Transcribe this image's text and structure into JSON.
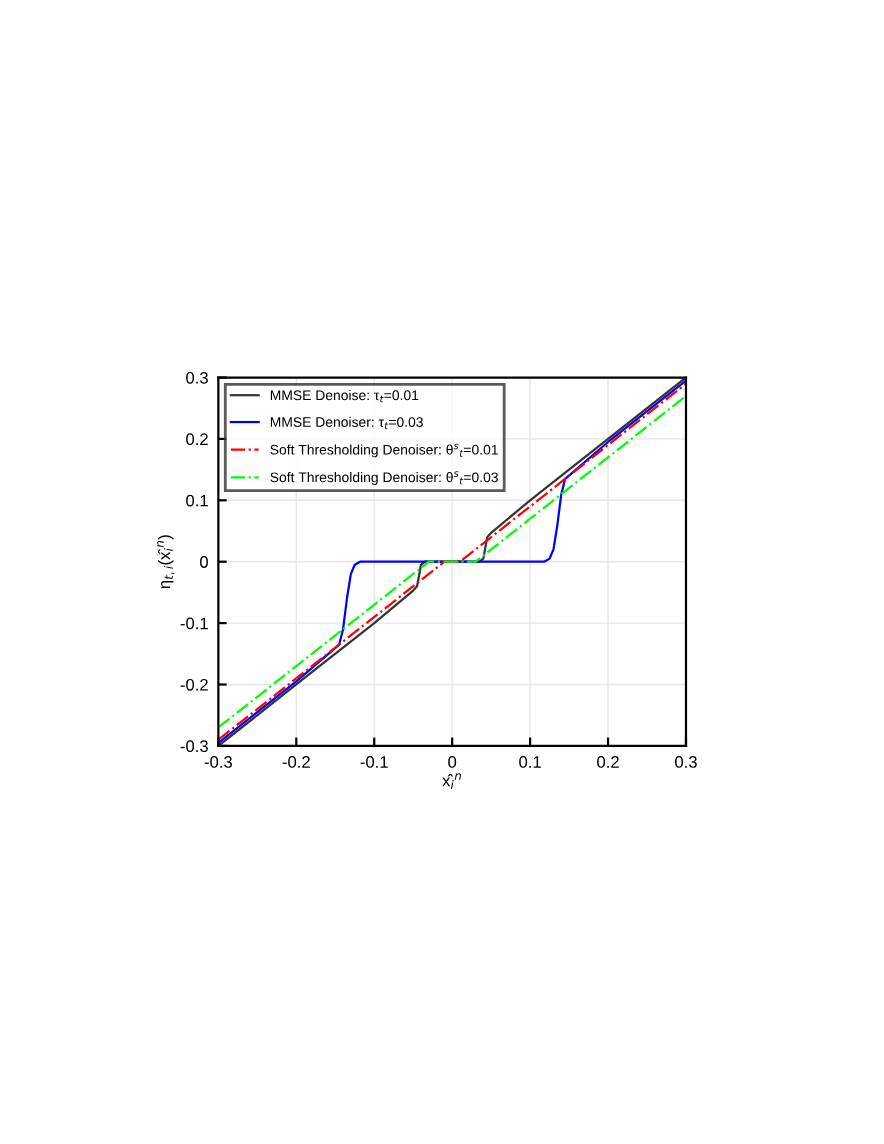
{
  "chart_data": {
    "type": "line",
    "xlabel": "x̂$_{i}$$^{n}$",
    "ylabel": "η$_{t,i}$(x̂$_{i}$$^{n}$)",
    "xlim": [
      -0.3,
      0.3
    ],
    "ylim": [
      -0.3,
      0.3
    ],
    "xticks": [
      -0.3,
      -0.2,
      -0.1,
      0,
      0.1,
      0.2,
      0.3
    ],
    "yticks": [
      -0.3,
      -0.2,
      -0.1,
      0,
      0.1,
      0.2,
      0.3
    ],
    "grid": true,
    "legend": "top left",
    "series": [
      {
        "name": "MMSE Denoise: τ$_{t}$=0.01",
        "color": "#333333",
        "line_style": "solid",
        "x": [
          -0.3,
          -0.2,
          -0.1,
          -0.05,
          -0.045,
          -0.04,
          -0.035,
          0.035,
          0.04,
          0.045,
          0.05,
          0.1,
          0.2,
          0.3
        ],
        "values": [
          -0.3,
          -0.2,
          -0.1,
          -0.047,
          -0.04,
          -0.005,
          0,
          0,
          0.005,
          0.04,
          0.047,
          0.1,
          0.2,
          0.3
        ]
      },
      {
        "name": "MMSE Denoiser: τ$_{t}$=0.03",
        "color": "#0000ff",
        "line_style": "solid",
        "x": [
          -0.3,
          -0.2,
          -0.145,
          -0.14,
          -0.135,
          -0.13,
          -0.125,
          -0.118,
          0.118,
          0.125,
          0.13,
          0.135,
          0.14,
          0.145,
          0.2,
          0.3
        ],
        "values": [
          -0.295,
          -0.195,
          -0.135,
          -0.11,
          -0.06,
          -0.02,
          -0.005,
          0,
          0,
          0.005,
          0.02,
          0.06,
          0.11,
          0.135,
          0.195,
          0.295
        ]
      },
      {
        "name": "Soft Thresholding Denoiser: θ$^{s}$$_{t}$=0.01",
        "color": "#ff0000",
        "line_style": "dashdot",
        "x": [
          -0.3,
          -0.01,
          0.01,
          0.3
        ],
        "values": [
          -0.29,
          0,
          0,
          0.29
        ]
      },
      {
        "name": "Soft Thresholding Denoiser: θ$^{s}$$_{t}$=0.03",
        "color": "#00ff00",
        "line_style": "dashdot",
        "x": [
          -0.3,
          -0.03,
          0.03,
          0.3
        ],
        "values": [
          -0.27,
          0,
          0,
          0.27
        ]
      }
    ]
  }
}
